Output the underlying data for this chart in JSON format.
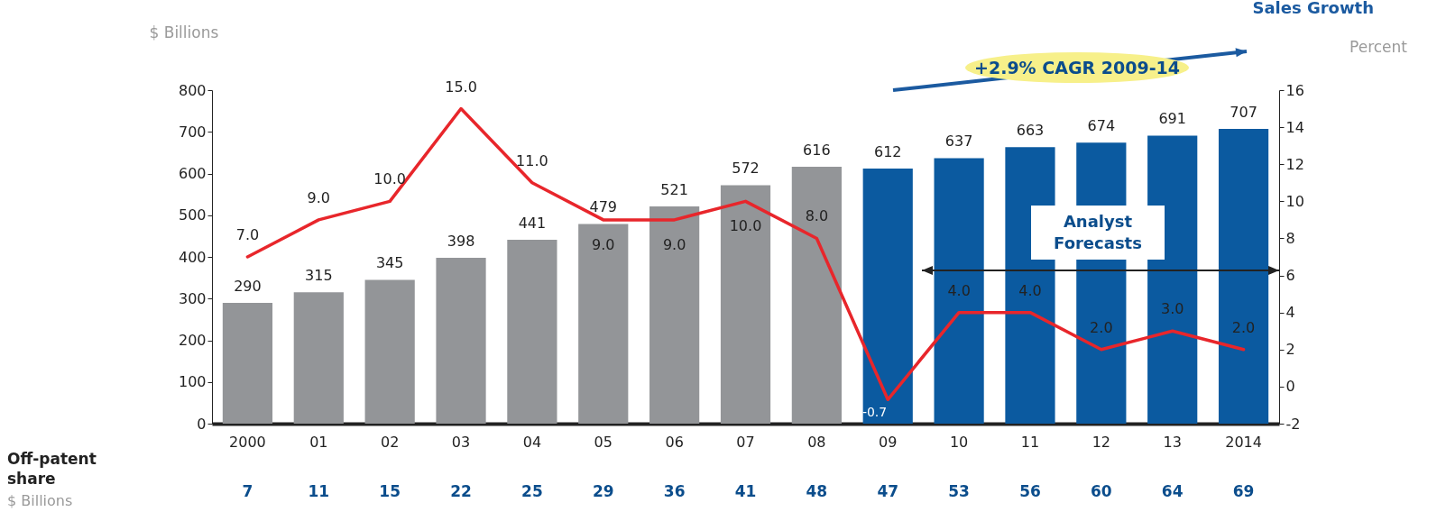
{
  "chart_data": {
    "type": "bar",
    "categories": [
      "2000",
      "01",
      "02",
      "03",
      "04",
      "05",
      "06",
      "07",
      "08",
      "09",
      "10",
      "11",
      "12",
      "13",
      "2014"
    ],
    "series": [
      {
        "colors": [
          "#939598",
          "#939598",
          "#939598",
          "#939598",
          "#939598",
          "#939598",
          "#939598",
          "#939598",
          "#939598",
          "#0b5aa0",
          "#0b5aa0",
          "#0b5aa0",
          "#0b5aa0",
          "#0b5aa0",
          "#0b5aa0"
        ],
        "values": [
          290,
          315,
          345,
          398,
          441,
          479,
          521,
          572,
          616,
          612,
          637,
          663,
          674,
          691,
          707
        ]
      },
      {
        "type": "line",
        "axis": "y2",
        "color": "#e8262b",
        "values": [
          7.0,
          9.0,
          10.0,
          15.0,
          11.0,
          9.0,
          9.0,
          10.0,
          8.0,
          -0.7,
          4.0,
          4.0,
          2.0,
          3.0,
          2.0
        ],
        "value_labels": [
          "7.0",
          "9.0",
          "10.0",
          "15.0",
          "11.0",
          "9.0",
          "9.0",
          "10.0",
          "8.0",
          "-0.7",
          "4.0",
          "4.0",
          "2.0",
          "3.0",
          "2.0"
        ]
      }
    ],
    "ylim": [
      0,
      800
    ],
    "yticks": [
      0,
      100,
      200,
      300,
      400,
      500,
      600,
      700,
      800
    ],
    "y2lim": [
      -2,
      16
    ],
    "y2ticks": [
      -2,
      0,
      2,
      4,
      6,
      8,
      10,
      12,
      14,
      16
    ],
    "ylabel": "$ Billions",
    "y2label": "Sales Growth",
    "data_labels": true,
    "annotations": [
      "+2.9% CAGR 2009-14",
      "Analyst Forecasts",
      "Percent",
      "Off-patent share",
      "$ Billions",
      "7",
      "11",
      "15",
      "22",
      "25",
      "29",
      "36",
      "41",
      "48",
      "47",
      "53",
      "56",
      "60",
      "64",
      "69"
    ]
  }
}
